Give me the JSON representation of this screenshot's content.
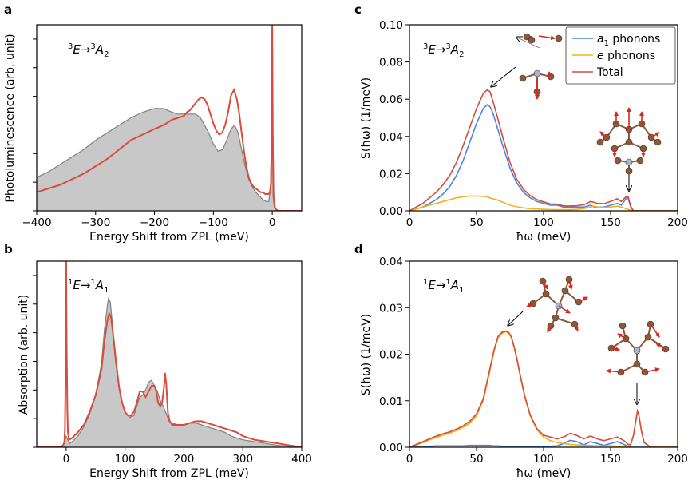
{
  "colors": {
    "a1": "#4a86e0",
    "e": "#f2b21b",
    "total": "#d94b3b",
    "exp": "#c8c8c8",
    "exp_line": "#808080",
    "atom_c": "#8b5a3c",
    "atom_n": "#a9b4d2",
    "arrow": "#d42a20"
  },
  "panels": {
    "a": {
      "letter": "a",
      "annotation": {
        "pre_sup": "3",
        "main": "E→",
        "sup2": "3",
        "tail": "A",
        "sub": "2"
      }
    },
    "b": {
      "letter": "b",
      "annotation": {
        "pre_sup": "1",
        "main": "E→",
        "sup2": "1",
        "tail": "A",
        "sub": "1"
      }
    },
    "c": {
      "letter": "c",
      "annotation": {
        "pre_sup": "3",
        "main": "E→",
        "sup2": "3",
        "tail": "A",
        "sub": "2"
      }
    },
    "d": {
      "letter": "d",
      "annotation": {
        "pre_sup": "1",
        "main": "E→",
        "sup2": "1",
        "tail": "A",
        "sub": "1"
      }
    }
  },
  "legend": [
    {
      "key": "a1",
      "label_main": "a",
      "label_sub": "1",
      "label_tail": " phonons"
    },
    {
      "key": "e",
      "label_main": "e",
      "label_sub": "",
      "label_tail": " phonons"
    },
    {
      "key": "total",
      "label_main": "Total",
      "label_sub": "",
      "label_tail": ""
    }
  ],
  "chart_data": [
    {
      "panel": "a",
      "type": "line",
      "xlabel": "Energy Shift from ZPL (meV)",
      "ylabel": "Photoluminescence (arb. unit)",
      "xlim": [
        -400,
        50
      ],
      "ylim": [
        0,
        1.0
      ],
      "xticks": [
        -400,
        -300,
        -200,
        -100,
        0
      ],
      "xtick_labels": [
        "−400",
        "−300",
        "−200",
        "−100",
        "0"
      ],
      "experiment_x": [
        -400,
        -380,
        -360,
        -340,
        -320,
        -300,
        -280,
        -260,
        -240,
        -220,
        -200,
        -185,
        -170,
        -160,
        -150,
        -140,
        -130,
        -122,
        -115,
        -108,
        -100,
        -92,
        -84,
        -76,
        -70,
        -64,
        -58,
        -52,
        -46,
        -40,
        -34,
        -28,
        -22,
        -16,
        -10,
        -6,
        -3,
        -1,
        0,
        1,
        3,
        6,
        10,
        20,
        30,
        50
      ],
      "experiment_y": [
        0.18,
        0.21,
        0.25,
        0.29,
        0.33,
        0.38,
        0.42,
        0.46,
        0.5,
        0.53,
        0.55,
        0.55,
        0.53,
        0.52,
        0.52,
        0.52,
        0.52,
        0.5,
        0.46,
        0.42,
        0.36,
        0.32,
        0.33,
        0.39,
        0.44,
        0.46,
        0.42,
        0.33,
        0.24,
        0.17,
        0.13,
        0.1,
        0.08,
        0.06,
        0.05,
        0.05,
        0.12,
        0.45,
        1.0,
        0.45,
        0.04,
        0.01,
        0.0,
        0.0,
        0.0,
        0.0
      ],
      "theory_x": [
        -400,
        -380,
        -360,
        -340,
        -320,
        -300,
        -280,
        -260,
        -240,
        -220,
        -200,
        -185,
        -170,
        -160,
        -150,
        -145,
        -140,
        -135,
        -130,
        -125,
        -120,
        -115,
        -110,
        -105,
        -100,
        -95,
        -90,
        -85,
        -80,
        -75,
        -70,
        -65,
        -60,
        -56,
        -52,
        -48,
        -44,
        -40,
        -36,
        -32,
        -28,
        -24,
        -20,
        -16,
        -12,
        -8,
        -6,
        -4,
        -2,
        -1,
        0,
        1,
        2,
        4,
        6,
        10,
        20,
        50
      ],
      "theory_y": [
        0.1,
        0.12,
        0.14,
        0.17,
        0.2,
        0.24,
        0.28,
        0.33,
        0.38,
        0.41,
        0.44,
        0.46,
        0.49,
        0.5,
        0.51,
        0.53,
        0.54,
        0.56,
        0.58,
        0.6,
        0.61,
        0.6,
        0.57,
        0.52,
        0.47,
        0.43,
        0.41,
        0.42,
        0.46,
        0.53,
        0.62,
        0.65,
        0.6,
        0.52,
        0.42,
        0.32,
        0.24,
        0.18,
        0.15,
        0.13,
        0.12,
        0.11,
        0.1,
        0.1,
        0.09,
        0.09,
        0.09,
        0.1,
        0.15,
        0.4,
        1.0,
        0.4,
        0.08,
        0.02,
        0.01,
        0.0,
        0.0,
        0.0
      ]
    },
    {
      "panel": "b",
      "type": "line",
      "xlabel": "Energy Shift from ZPL (meV)",
      "ylabel": "Absorption (arb. unit)",
      "xlim": [
        -50,
        400
      ],
      "ylim": [
        0,
        1.0
      ],
      "xticks": [
        0,
        100,
        200,
        300,
        400
      ],
      "xtick_labels": [
        "0",
        "100",
        "200",
        "300",
        "400"
      ],
      "experiment_x": [
        -50,
        -10,
        -3,
        0,
        3,
        6,
        10,
        20,
        30,
        40,
        50,
        60,
        65,
        70,
        72,
        75,
        78,
        82,
        87,
        93,
        100,
        108,
        115,
        120,
        125,
        130,
        135,
        140,
        145,
        150,
        155,
        160,
        165,
        170,
        175,
        180,
        190,
        200,
        210,
        220,
        230,
        240,
        250,
        260,
        270,
        280,
        290,
        300,
        320,
        340,
        360,
        380,
        400
      ],
      "experiment_y": [
        0.0,
        0.0,
        0.02,
        0.06,
        0.04,
        0.02,
        0.03,
        0.06,
        0.11,
        0.18,
        0.28,
        0.45,
        0.63,
        0.76,
        0.8,
        0.78,
        0.68,
        0.52,
        0.38,
        0.26,
        0.19,
        0.16,
        0.17,
        0.22,
        0.27,
        0.28,
        0.31,
        0.35,
        0.36,
        0.33,
        0.3,
        0.25,
        0.22,
        0.18,
        0.14,
        0.13,
        0.12,
        0.12,
        0.13,
        0.13,
        0.12,
        0.11,
        0.1,
        0.09,
        0.08,
        0.06,
        0.05,
        0.04,
        0.03,
        0.02,
        0.01,
        0.005,
        0.0
      ],
      "theory_x": [
        -50,
        -10,
        -5,
        -3,
        -2,
        -1,
        0,
        1,
        2,
        3,
        5,
        10,
        20,
        30,
        40,
        50,
        60,
        65,
        70,
        73,
        76,
        80,
        85,
        90,
        95,
        100,
        105,
        110,
        115,
        120,
        125,
        130,
        135,
        140,
        145,
        150,
        153,
        156,
        160,
        163,
        166,
        168,
        170,
        173,
        176,
        180,
        190,
        200,
        210,
        220,
        230,
        240,
        250,
        260,
        270,
        280,
        290,
        295,
        300,
        310,
        320,
        340,
        360,
        380,
        400
      ],
      "theory_y": [
        0.0,
        0.0,
        0.01,
        0.03,
        0.1,
        0.4,
        1.0,
        0.5,
        0.2,
        0.08,
        0.04,
        0.05,
        0.08,
        0.12,
        0.19,
        0.28,
        0.42,
        0.57,
        0.68,
        0.72,
        0.7,
        0.6,
        0.45,
        0.32,
        0.24,
        0.19,
        0.17,
        0.17,
        0.19,
        0.24,
        0.3,
        0.3,
        0.27,
        0.3,
        0.33,
        0.33,
        0.3,
        0.24,
        0.22,
        0.24,
        0.32,
        0.4,
        0.34,
        0.18,
        0.14,
        0.12,
        0.12,
        0.12,
        0.13,
        0.14,
        0.14,
        0.13,
        0.12,
        0.11,
        0.1,
        0.09,
        0.08,
        0.07,
        0.06,
        0.05,
        0.04,
        0.03,
        0.02,
        0.01,
        0.0
      ]
    },
    {
      "panel": "c",
      "type": "line",
      "xlabel": "ħω (meV)",
      "ylabel": "S(ħω) (1/meV)",
      "xlim": [
        0,
        200
      ],
      "ylim": [
        0,
        0.1
      ],
      "xticks": [
        0,
        50,
        100,
        150,
        200
      ],
      "xtick_labels": [
        "0",
        "50",
        "100",
        "150",
        "200"
      ],
      "yticks": [
        0,
        0.02,
        0.04,
        0.06,
        0.08,
        0.1
      ],
      "ytick_labels": [
        "0.00",
        "0.02",
        "0.04",
        "0.06",
        "0.08",
        "0.10"
      ],
      "x": [
        0,
        5,
        10,
        15,
        20,
        25,
        30,
        35,
        40,
        45,
        50,
        55,
        58,
        60,
        62,
        65,
        70,
        75,
        80,
        85,
        90,
        95,
        100,
        105,
        110,
        115,
        120,
        125,
        130,
        135,
        138,
        140,
        145,
        150,
        155,
        158,
        160,
        162,
        163,
        165,
        167,
        170,
        175,
        180,
        190,
        200
      ],
      "series": [
        {
          "name": "a1 phonons",
          "key": "a1",
          "values": [
            0,
            0.001,
            0.002,
            0.004,
            0.006,
            0.009,
            0.013,
            0.019,
            0.027,
            0.037,
            0.047,
            0.055,
            0.057,
            0.056,
            0.053,
            0.046,
            0.034,
            0.023,
            0.015,
            0.01,
            0.007,
            0.005,
            0.004,
            0.003,
            0.003,
            0.002,
            0.002,
            0.002,
            0.002,
            0.003,
            0.002,
            0.002,
            0.002,
            0.003,
            0.004,
            0.003,
            0.005,
            0.007,
            0.007,
            0.002,
            0.0,
            0.0,
            0.0,
            0.0,
            0.0,
            0.0
          ]
        },
        {
          "name": "e phonons",
          "key": "e",
          "values": [
            0,
            0.001,
            0.002,
            0.003,
            0.004,
            0.005,
            0.006,
            0.007,
            0.0075,
            0.008,
            0.008,
            0.0078,
            0.0075,
            0.007,
            0.0065,
            0.006,
            0.0045,
            0.003,
            0.0022,
            0.0016,
            0.0012,
            0.001,
            0.0008,
            0.0007,
            0.0006,
            0.0006,
            0.0006,
            0.0008,
            0.0012,
            0.002,
            0.0025,
            0.002,
            0.0018,
            0.002,
            0.0025,
            0.002,
            0.0015,
            0.001,
            0.0008,
            0.0004,
            0.0,
            0.0,
            0.0,
            0.0,
            0.0,
            0.0
          ]
        },
        {
          "name": "Total",
          "key": "total",
          "values": [
            0,
            0.002,
            0.004,
            0.007,
            0.01,
            0.014,
            0.019,
            0.026,
            0.035,
            0.045,
            0.055,
            0.063,
            0.065,
            0.064,
            0.0595,
            0.052,
            0.0385,
            0.026,
            0.017,
            0.0116,
            0.0082,
            0.006,
            0.0048,
            0.0037,
            0.0036,
            0.0026,
            0.0026,
            0.0028,
            0.0032,
            0.005,
            0.0045,
            0.004,
            0.0038,
            0.005,
            0.0065,
            0.005,
            0.0065,
            0.008,
            0.0078,
            0.0024,
            0.0,
            0.0,
            0.0,
            0.0,
            0.0,
            0.0
          ]
        }
      ]
    },
    {
      "panel": "d",
      "type": "line",
      "xlabel": "ħω (meV)",
      "ylabel": "S(ħω) (1/meV)",
      "xlim": [
        0,
        200
      ],
      "ylim": [
        0,
        0.04
      ],
      "xticks": [
        0,
        50,
        100,
        150,
        200
      ],
      "xtick_labels": [
        "0",
        "50",
        "100",
        "150",
        "200"
      ],
      "yticks": [
        0,
        0.01,
        0.02,
        0.03,
        0.04
      ],
      "ytick_labels": [
        "0.00",
        "0.01",
        "0.02",
        "0.03",
        "0.04"
      ],
      "x": [
        0,
        5,
        10,
        15,
        20,
        25,
        30,
        35,
        40,
        45,
        50,
        55,
        60,
        63,
        66,
        69,
        72,
        74,
        76,
        78,
        80,
        83,
        86,
        90,
        95,
        100,
        105,
        110,
        115,
        120,
        125,
        130,
        135,
        140,
        145,
        150,
        155,
        160,
        163,
        165,
        167,
        169,
        170,
        171,
        173,
        175,
        180,
        190,
        200
      ],
      "series": [
        {
          "name": "a1 phonons",
          "key": "a1",
          "values": [
            0,
            0.0001,
            0.0002,
            0.0002,
            0.0003,
            0.0003,
            0.0003,
            0.0003,
            0.0003,
            0.0004,
            0.0004,
            0.0004,
            0.0004,
            0.0003,
            0.0003,
            0.0002,
            0.0002,
            0.0002,
            0.0002,
            0.0002,
            0.0002,
            0.0002,
            0.0002,
            0.0002,
            0.0002,
            0.0002,
            0.0002,
            0.0003,
            0.0008,
            0.0015,
            0.0012,
            0.0005,
            0.0012,
            0.0008,
            0.0004,
            0.0008,
            0.0012,
            0.0006,
            0.0002,
            0.0,
            0.0,
            0.0,
            0.0,
            0.0,
            0.0,
            0.0,
            0.0,
            0.0,
            0.0
          ]
        },
        {
          "name": "e phonons",
          "key": "e",
          "values": [
            0,
            0.0005,
            0.001,
            0.0016,
            0.0021,
            0.0026,
            0.003,
            0.0036,
            0.0043,
            0.0052,
            0.0068,
            0.01,
            0.0165,
            0.0205,
            0.0235,
            0.0245,
            0.0248,
            0.0245,
            0.0235,
            0.0215,
            0.019,
            0.0148,
            0.0108,
            0.0068,
            0.0038,
            0.0022,
            0.0014,
            0.001,
            0.0008,
            0.0006,
            0.0005,
            0.0004,
            0.0004,
            0.0003,
            0.0003,
            0.0003,
            0.0002,
            0.0002,
            0.0002,
            0.0005,
            0.0025,
            0.006,
            0.0078,
            0.007,
            0.0035,
            0.001,
            0.0,
            0.0,
            0.0
          ]
        },
        {
          "name": "Total",
          "key": "total",
          "values": [
            0,
            0.0006,
            0.0012,
            0.0018,
            0.0024,
            0.0029,
            0.0033,
            0.0039,
            0.0046,
            0.0056,
            0.0072,
            0.0104,
            0.0169,
            0.0208,
            0.0238,
            0.0247,
            0.025,
            0.0247,
            0.0237,
            0.0217,
            0.0192,
            0.015,
            0.011,
            0.007,
            0.004,
            0.0026,
            0.0022,
            0.0018,
            0.0022,
            0.003,
            0.0025,
            0.0018,
            0.0024,
            0.0018,
            0.0014,
            0.0018,
            0.0022,
            0.0014,
            0.0006,
            0.0006,
            0.0025,
            0.006,
            0.0078,
            0.007,
            0.0035,
            0.001,
            0.0,
            0.0,
            0.0
          ]
        }
      ]
    }
  ]
}
